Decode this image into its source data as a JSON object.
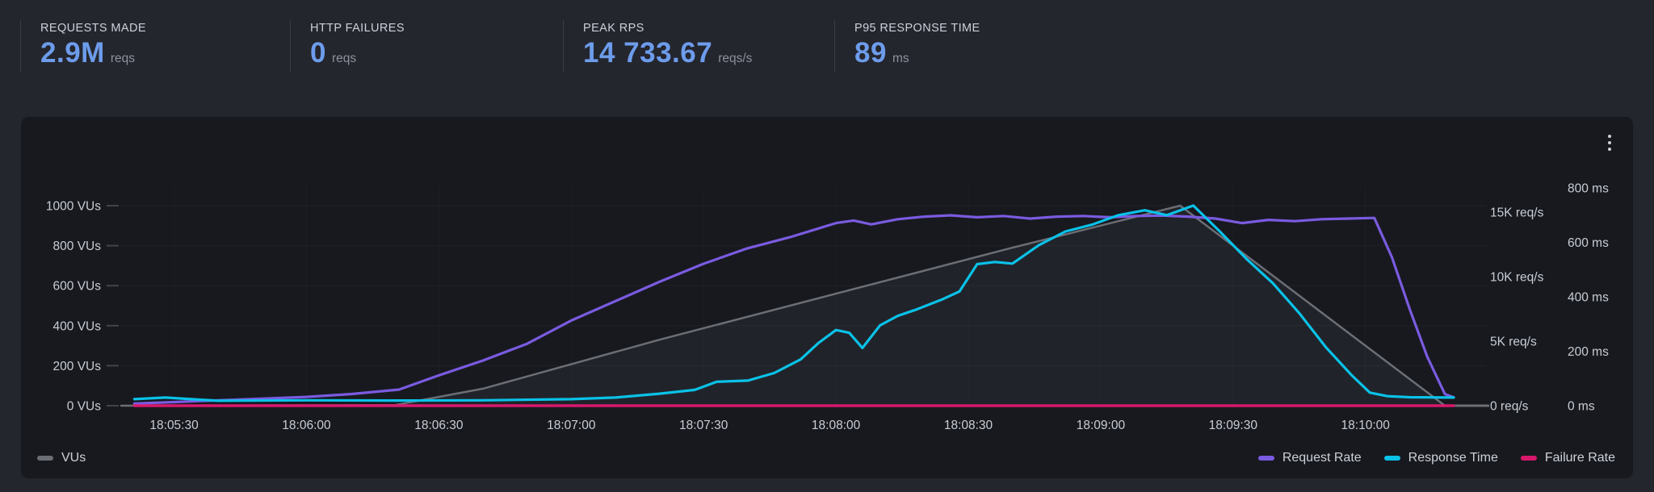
{
  "stats": [
    {
      "label": "REQUESTS MADE",
      "value": "2.9M",
      "unit": "reqs"
    },
    {
      "label": "HTTP FAILURES",
      "value": "0",
      "unit": "reqs"
    },
    {
      "label": "PEAK RPS",
      "value": "14 733.67",
      "unit": "reqs/s"
    },
    {
      "label": "P95 RESPONSE TIME",
      "value": "89",
      "unit": "ms"
    }
  ],
  "colors": {
    "stat_value": "#6d9ceb",
    "vus_gray": "#6b6e75",
    "request_rate_purple": "#7a5be0",
    "response_time_cyan": "#0ac2e8",
    "failure_rate_pink": "#d8186c"
  },
  "chart_data": {
    "type": "line",
    "time_range": {
      "start": "18:05:18",
      "end": "18:10:20"
    },
    "x_axis": {
      "ticks": [
        "18:05:30",
        "18:06:00",
        "18:06:30",
        "18:07:00",
        "18:07:30",
        "18:08:00",
        "18:08:30",
        "18:09:00",
        "18:09:30",
        "18:10:00"
      ]
    },
    "y_axes": {
      "vus": {
        "side": "left",
        "unit": "VUs",
        "max": 1000,
        "ticks": [
          {
            "label": "0 VUs",
            "value": 0
          },
          {
            "label": "200 VUs",
            "value": 200
          },
          {
            "label": "400 VUs",
            "value": 400
          },
          {
            "label": "600 VUs",
            "value": 600
          },
          {
            "label": "800 VUs",
            "value": 800
          },
          {
            "label": "1000 VUs",
            "value": 1000
          }
        ]
      },
      "rps": {
        "side": "right",
        "unit": "req/s",
        "max": 15000,
        "ticks": [
          {
            "label": "0 req/s",
            "value": 0
          },
          {
            "label": "5K req/s",
            "value": 5000
          },
          {
            "label": "10K req/s",
            "value": 10000
          },
          {
            "label": "15K req/s",
            "value": 15000
          }
        ]
      },
      "ms": {
        "side": "right",
        "unit": "ms",
        "max": 800,
        "ticks": [
          {
            "label": "0 ms",
            "value": 0
          },
          {
            "label": "200 ms",
            "value": 200
          },
          {
            "label": "400 ms",
            "value": 400
          },
          {
            "label": "600 ms",
            "value": 600
          },
          {
            "label": "800 ms",
            "value": 800
          }
        ]
      }
    },
    "series": [
      {
        "name": "VUs",
        "axis": "vus",
        "color": "#6b6e75",
        "fill": true,
        "width": 2.5,
        "points": [
          [
            "18:05:18",
            0
          ],
          [
            "18:06:20",
            3
          ],
          [
            "18:06:40",
            85
          ],
          [
            "18:07:20",
            330
          ],
          [
            "18:08:00",
            560
          ],
          [
            "18:08:40",
            790
          ],
          [
            "18:09:18",
            1000
          ],
          [
            "18:10:18",
            0
          ]
        ]
      },
      {
        "name": "Request Rate",
        "axis": "rps",
        "color": "#7a5be0",
        "width": 3.2,
        "points": [
          [
            "18:05:21",
            160
          ],
          [
            "18:05:30",
            280
          ],
          [
            "18:05:45",
            480
          ],
          [
            "18:06:00",
            680
          ],
          [
            "18:06:10",
            900
          ],
          [
            "18:06:21",
            1250
          ],
          [
            "18:06:30",
            2350
          ],
          [
            "18:06:40",
            3500
          ],
          [
            "18:06:50",
            4800
          ],
          [
            "18:07:00",
            6600
          ],
          [
            "18:07:10",
            8100
          ],
          [
            "18:07:20",
            9600
          ],
          [
            "18:07:30",
            11000
          ],
          [
            "18:07:40",
            12200
          ],
          [
            "18:07:50",
            13100
          ],
          [
            "18:08:00",
            14150
          ],
          [
            "18:08:04",
            14350
          ],
          [
            "18:08:08",
            14050
          ],
          [
            "18:08:14",
            14450
          ],
          [
            "18:08:20",
            14650
          ],
          [
            "18:08:26",
            14750
          ],
          [
            "18:08:32",
            14600
          ],
          [
            "18:08:38",
            14700
          ],
          [
            "18:08:44",
            14500
          ],
          [
            "18:08:50",
            14650
          ],
          [
            "18:08:56",
            14700
          ],
          [
            "18:09:02",
            14600
          ],
          [
            "18:09:08",
            14700
          ],
          [
            "18:09:14",
            14733
          ],
          [
            "18:09:20",
            14650
          ],
          [
            "18:09:26",
            14500
          ],
          [
            "18:09:32",
            14150
          ],
          [
            "18:09:38",
            14400
          ],
          [
            "18:09:44",
            14300
          ],
          [
            "18:09:50",
            14450
          ],
          [
            "18:09:56",
            14500
          ],
          [
            "18:10:02",
            14550
          ],
          [
            "18:10:06",
            11500
          ],
          [
            "18:10:10",
            7500
          ],
          [
            "18:10:14",
            3800
          ],
          [
            "18:10:18",
            900
          ],
          [
            "18:10:20",
            650
          ]
        ]
      },
      {
        "name": "Response Time",
        "axis": "ms",
        "color": "#0ac2e8",
        "width": 3.2,
        "points": [
          [
            "18:05:21",
            24
          ],
          [
            "18:05:28",
            30
          ],
          [
            "18:05:40",
            18
          ],
          [
            "18:06:00",
            20
          ],
          [
            "18:06:20",
            19
          ],
          [
            "18:06:40",
            20
          ],
          [
            "18:07:00",
            24
          ],
          [
            "18:07:10",
            30
          ],
          [
            "18:07:20",
            44
          ],
          [
            "18:07:28",
            58
          ],
          [
            "18:07:33",
            88
          ],
          [
            "18:07:40",
            92
          ],
          [
            "18:07:46",
            120
          ],
          [
            "18:07:52",
            170
          ],
          [
            "18:07:56",
            230
          ],
          [
            "18:08:00",
            278
          ],
          [
            "18:08:03",
            268
          ],
          [
            "18:08:06",
            212
          ],
          [
            "18:08:10",
            295
          ],
          [
            "18:08:14",
            330
          ],
          [
            "18:08:18",
            352
          ],
          [
            "18:08:24",
            390
          ],
          [
            "18:08:28",
            420
          ],
          [
            "18:08:32",
            520
          ],
          [
            "18:08:36",
            528
          ],
          [
            "18:08:40",
            522
          ],
          [
            "18:08:46",
            590
          ],
          [
            "18:08:52",
            640
          ],
          [
            "18:08:58",
            665
          ],
          [
            "18:09:04",
            700
          ],
          [
            "18:09:10",
            718
          ],
          [
            "18:09:15",
            700
          ],
          [
            "18:09:21",
            735
          ],
          [
            "18:09:27",
            640
          ],
          [
            "18:09:33",
            540
          ],
          [
            "18:09:39",
            450
          ],
          [
            "18:09:45",
            340
          ],
          [
            "18:09:51",
            215
          ],
          [
            "18:09:57",
            110
          ],
          [
            "18:10:01",
            48
          ],
          [
            "18:10:05",
            35
          ],
          [
            "18:10:10",
            31
          ],
          [
            "18:10:20",
            30
          ]
        ]
      },
      {
        "name": "Failure Rate",
        "axis": "rps",
        "color": "#d8186c",
        "width": 3.4,
        "points": [
          [
            "18:05:21",
            0
          ],
          [
            "18:10:20",
            0
          ]
        ]
      }
    ]
  }
}
